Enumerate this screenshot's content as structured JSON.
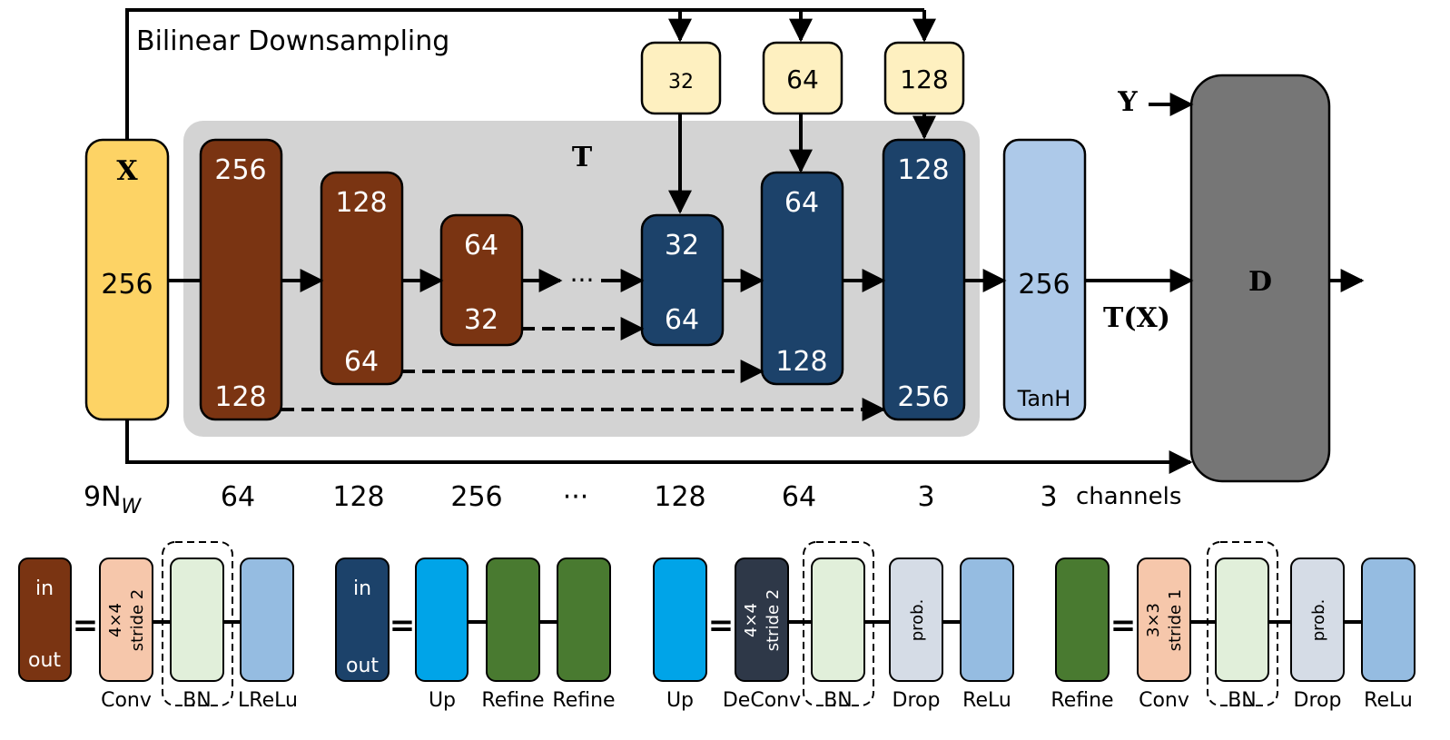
{
  "diagram": {
    "downsampling_label": "Bilinear Downsampling",
    "input": {
      "name": "X",
      "channels": "256"
    },
    "generator_label": "T",
    "encoder": [
      {
        "top": "256",
        "bottom": "128"
      },
      {
        "top": "128",
        "bottom": "64"
      },
      {
        "top": "64",
        "bottom": "32"
      }
    ],
    "ellipsis": "···",
    "downsampled_inputs": [
      "32",
      "64",
      "128"
    ],
    "decoder": [
      {
        "top": "32",
        "bottom": "64"
      },
      {
        "top": "64",
        "bottom": "128"
      },
      {
        "top": "128",
        "bottom": "256"
      }
    ],
    "output_block": {
      "value": "256",
      "activation": "TanH"
    },
    "target_label": "Y",
    "output_label": "T(X)",
    "discriminator_label": "D",
    "channel_row": {
      "first_base": "9N",
      "first_sub": "W",
      "values": [
        "64",
        "128",
        "256",
        "···",
        "128",
        "64",
        "3",
        "3"
      ],
      "suffix": "channels"
    }
  },
  "legend": {
    "encoder_block": {
      "in": "in",
      "out": "out",
      "equals": "=",
      "conv_text": [
        "4×4",
        "stride 2"
      ],
      "labels": [
        "Conv",
        "BN",
        "LReLu"
      ]
    },
    "decoder_block": {
      "in": "in",
      "out": "out",
      "equals": "=",
      "labels": [
        "Up",
        "Refine",
        "Refine"
      ]
    },
    "up_block": {
      "equals": "=",
      "deconv_text": [
        "4×4",
        "stride 2"
      ],
      "drop_text": "prob.",
      "labels": [
        "Up",
        "DeConv",
        "BN",
        "Drop",
        "ReLu"
      ]
    },
    "refine_block": {
      "equals": "=",
      "conv_text": [
        "3×3",
        "stride 1"
      ],
      "drop_text": "prob.",
      "labels": [
        "Refine",
        "Conv",
        "BN",
        "Drop",
        "ReLu"
      ]
    }
  },
  "colors": {
    "input_yellow": "#FDD365",
    "encoder_brown": "#7A3412",
    "decoder_navy": "#1C426A",
    "downsample_cream": "#FEF0C0",
    "tanh_light_blue": "#ADC9E9",
    "discriminator_gray": "#767676",
    "generator_bg": "#D3D3D3",
    "conv_peach": "#F6C7AB",
    "bn_green": "#E1EFDA",
    "relu_blue": "#95BCE1",
    "up_blue": "#00A4E8",
    "refine_green": "#497A30",
    "deconv_dark": "#2E3848",
    "drop_gray": "#D5DCE6"
  }
}
